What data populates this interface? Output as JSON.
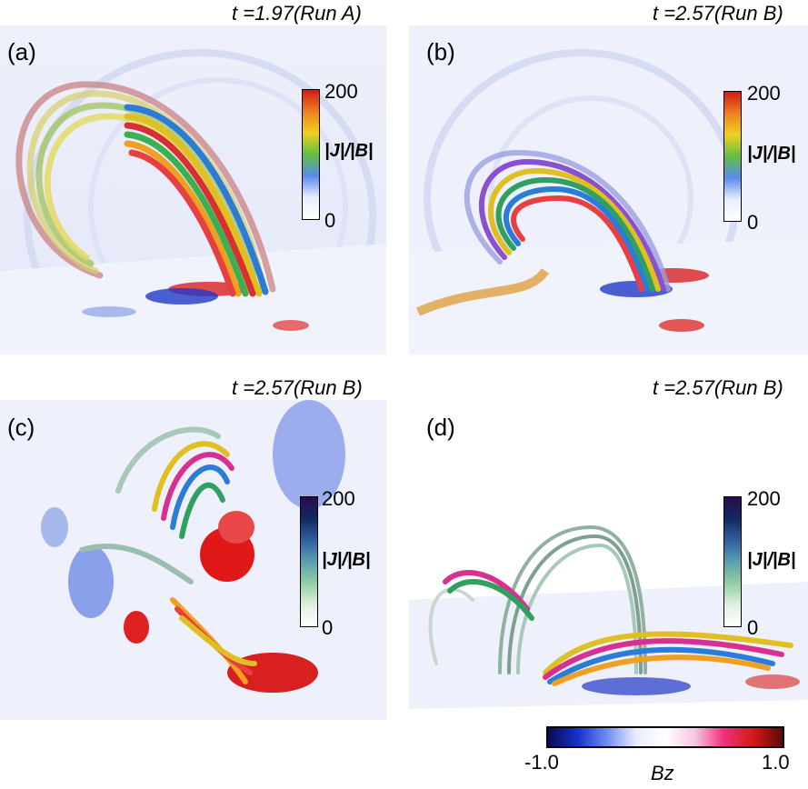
{
  "panels": {
    "a": {
      "label": "(a)",
      "time": "t =1.97(Run A)",
      "cbar_max": "200",
      "cbar_min": "0",
      "cbar_name": "|J|/|B|",
      "colormap": "rainbow"
    },
    "b": {
      "label": "(b)",
      "time": "t =2.57(Run B)",
      "cbar_max": "200",
      "cbar_min": "0",
      "cbar_name": "|J|/|B|",
      "colormap": "rainbow"
    },
    "c": {
      "label": "(c)",
      "time": "t =2.57(Run B)",
      "cbar_max": "200",
      "cbar_min": "0",
      "cbar_name": "|J|/|B|",
      "colormap": "cubehelix-green"
    },
    "d": {
      "label": "(d)",
      "time": "t =2.57(Run B)",
      "cbar_max": "200",
      "cbar_min": "0",
      "cbar_name": "|J|/|B|",
      "colormap": "cubehelix-green"
    }
  },
  "bz_colorbar": {
    "min": "-1.0",
    "max": "1.0",
    "name": "Bz",
    "colormap": "blue-white-red"
  }
}
